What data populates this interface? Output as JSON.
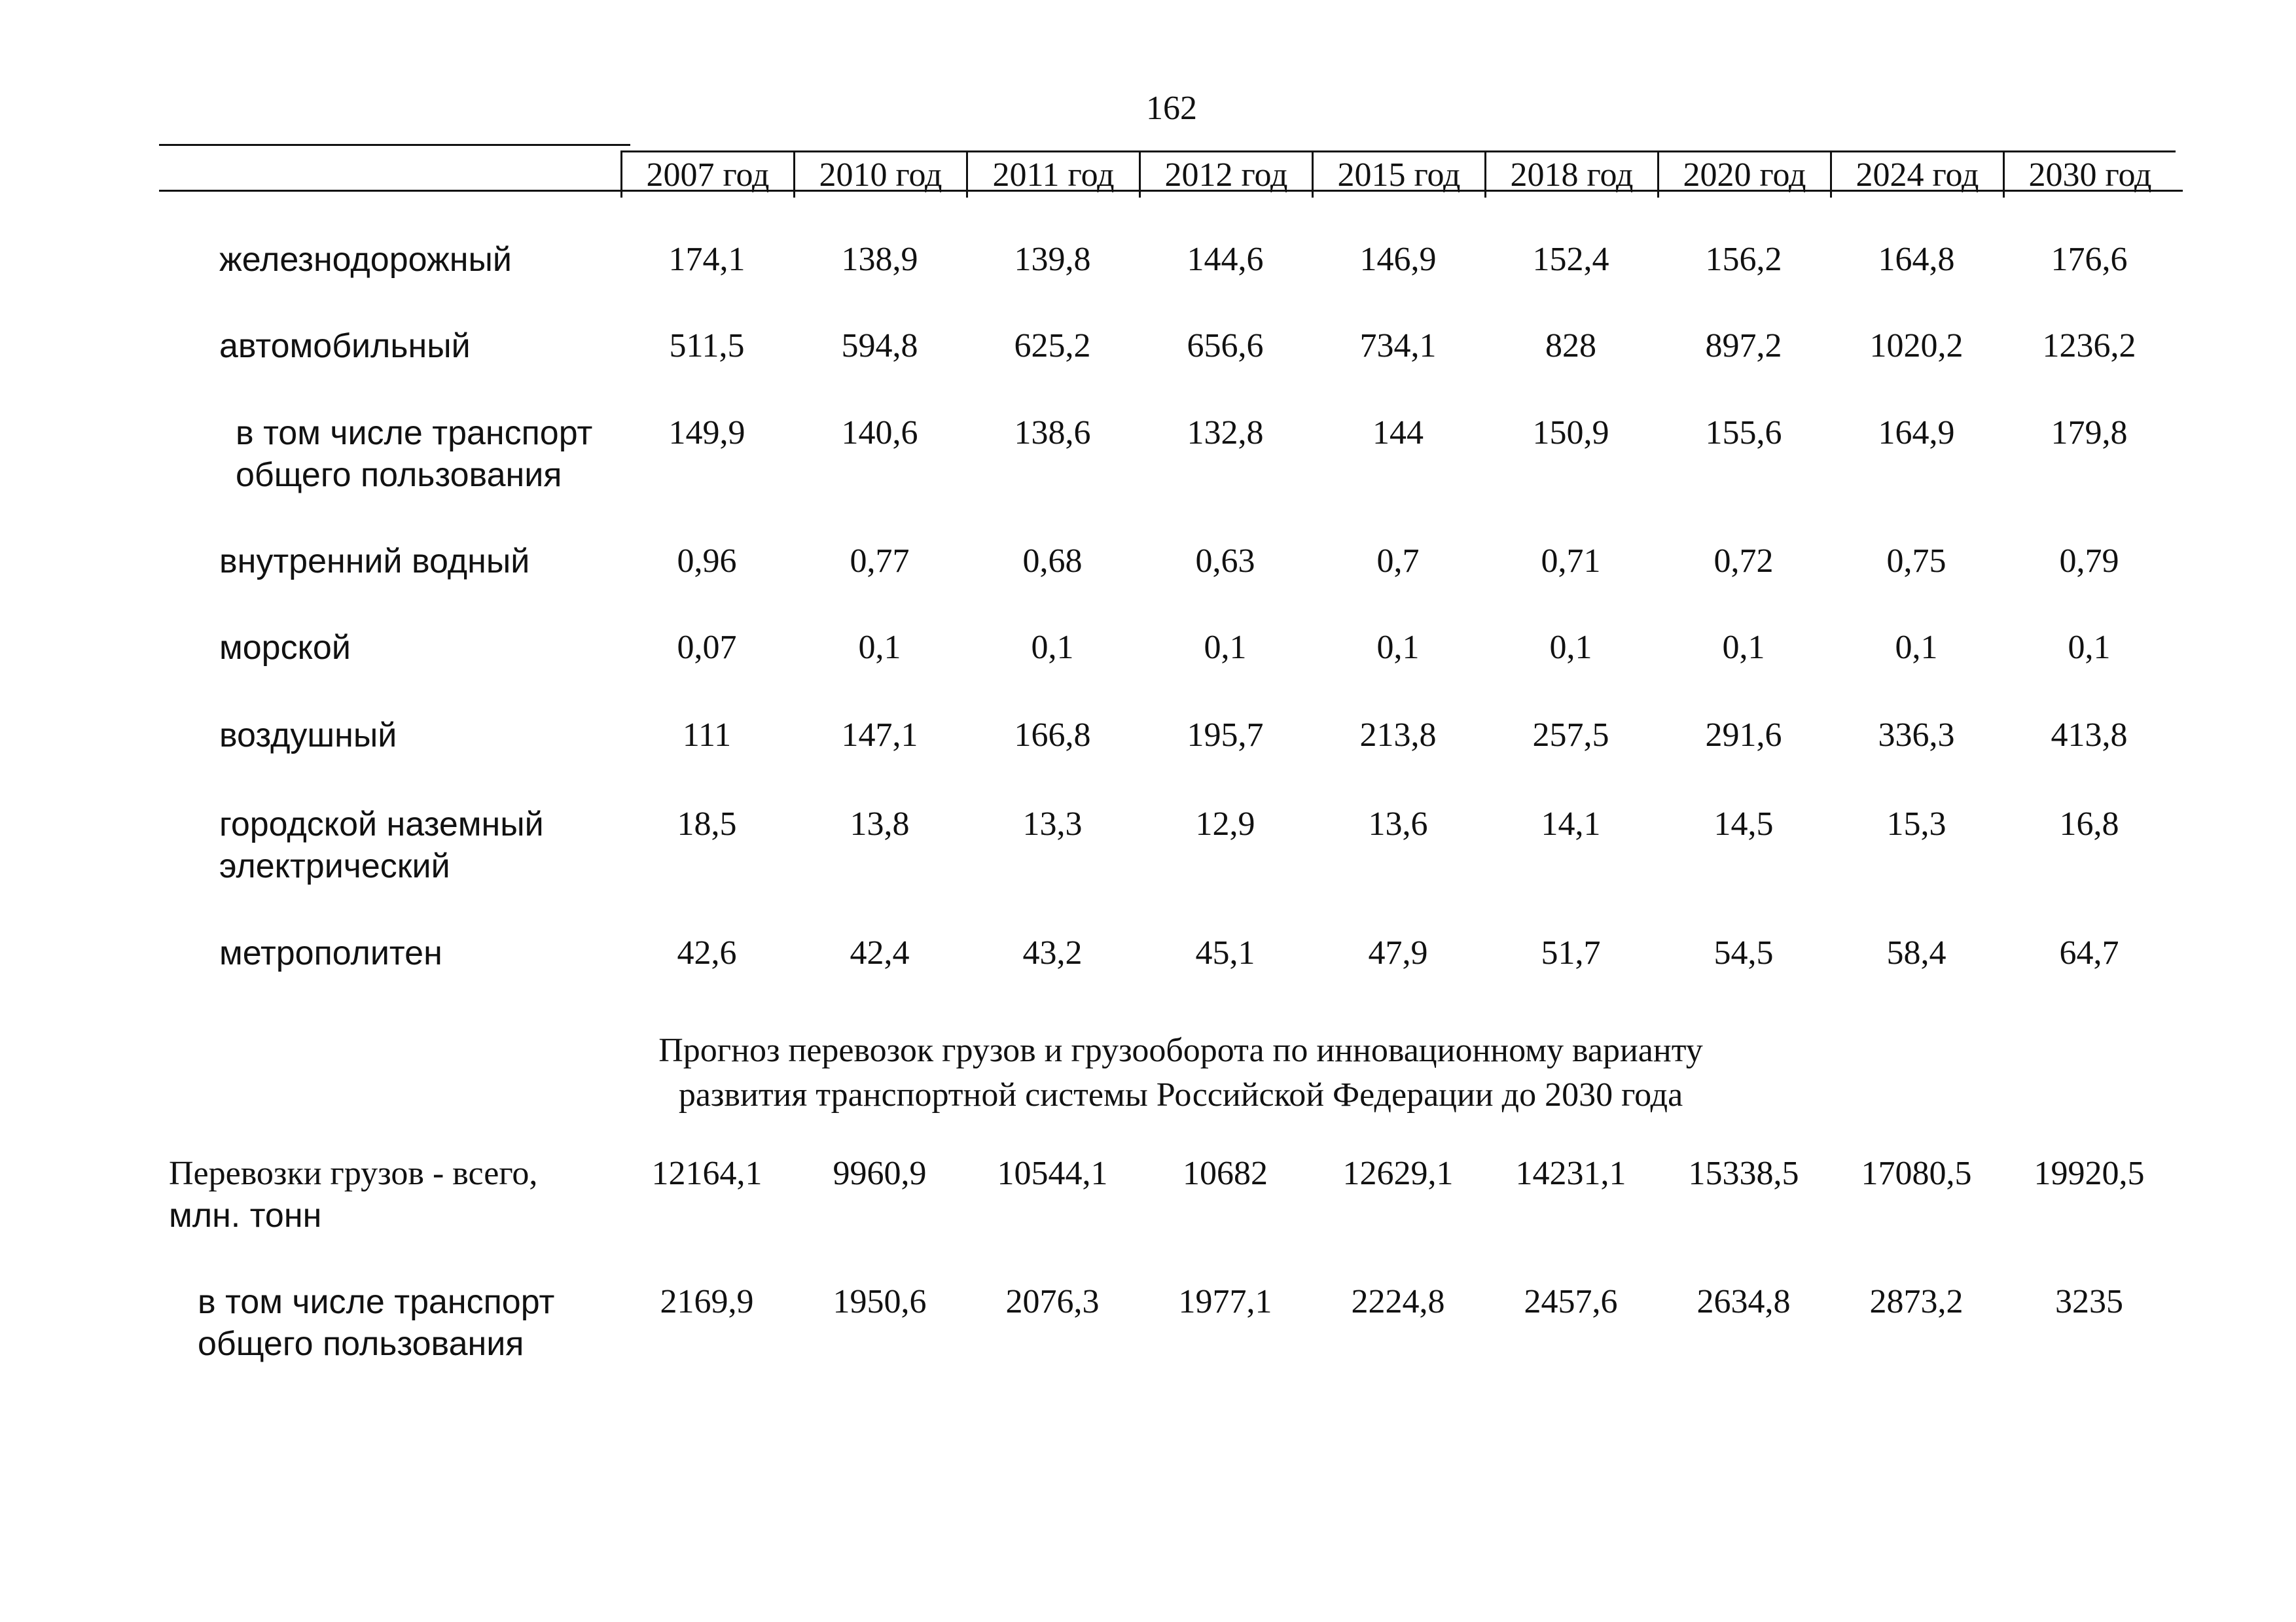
{
  "page_number": "162",
  "columns": [
    "2007 год",
    "2010 год",
    "2011 год",
    "2012 год",
    "2015 год",
    "2018 год",
    "2020 год",
    "2024 год",
    "2030 год"
  ],
  "passenger_rows": [
    {
      "label": [
        "железнодорожный"
      ],
      "values": [
        "174,1",
        "138,9",
        "139,8",
        "144,6",
        "146,9",
        "152,4",
        "156,2",
        "164,8",
        "176,6"
      ]
    },
    {
      "label": [
        "автомобильный"
      ],
      "values": [
        "511,5",
        "594,8",
        "625,2",
        "656,6",
        "734,1",
        "828",
        "897,2",
        "1020,2",
        "1236,2"
      ]
    },
    {
      "label": [
        "в том числе транспорт",
        "общего пользования"
      ],
      "values": [
        "149,9",
        "140,6",
        "138,6",
        "132,8",
        "144",
        "150,9",
        "155,6",
        "164,9",
        "179,8"
      ]
    },
    {
      "label": [
        "внутренний водный"
      ],
      "values": [
        "0,96",
        "0,77",
        "0,68",
        "0,63",
        "0,7",
        "0,71",
        "0,72",
        "0,75",
        "0,79"
      ]
    },
    {
      "label": [
        "морской"
      ],
      "values": [
        "0,07",
        "0,1",
        "0,1",
        "0,1",
        "0,1",
        "0,1",
        "0,1",
        "0,1",
        "0,1"
      ]
    },
    {
      "label": [
        "воздушный"
      ],
      "values": [
        "111",
        "147,1",
        "166,8",
        "195,7",
        "213,8",
        "257,5",
        "291,6",
        "336,3",
        "413,8"
      ]
    },
    {
      "label": [
        "городской наземный",
        "электрический"
      ],
      "values": [
        "18,5",
        "13,8",
        "13,3",
        "12,9",
        "13,6",
        "14,1",
        "14,5",
        "15,3",
        "16,8"
      ]
    },
    {
      "label": [
        "метрополитен"
      ],
      "values": [
        "42,6",
        "42,4",
        "43,2",
        "45,1",
        "47,9",
        "51,7",
        "54,5",
        "58,4",
        "64,7"
      ]
    }
  ],
  "section_title": [
    "Прогноз перевозок грузов и грузооборота по инновационному варианту",
    "развития транспортной системы Российской Федерации до 2030 года"
  ],
  "freight_rows": [
    {
      "label": [
        "Перевозки грузов - всего,",
        "млн. тонн"
      ],
      "values": [
        "12164,1",
        "9960,9",
        "10544,1",
        "10682",
        "12629,1",
        "14231,1",
        "15338,5",
        "17080,5",
        "19920,5"
      ]
    },
    {
      "label": [
        "в том числе транспорт",
        "общего пользования"
      ],
      "values": [
        "2169,9",
        "1950,6",
        "2076,3",
        "1977,1",
        "2224,8",
        "2457,6",
        "2634,8",
        "2873,2",
        "3235"
      ]
    }
  ]
}
